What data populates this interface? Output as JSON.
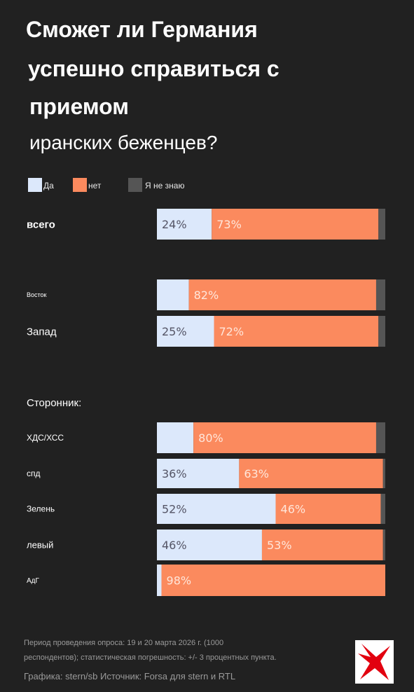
{
  "title_lines": [
    "Сможет ли Германия",
    "успешно справиться с",
    "приемом",
    "иранских беженцев?"
  ],
  "legend": [
    {
      "label": "Да",
      "color": "#dce8fb"
    },
    {
      "label": "нет",
      "color": "#fb8a5e"
    },
    {
      "label": "Я не знаю",
      "color": "#555555"
    }
  ],
  "chart_data": {
    "type": "bar",
    "orientation": "horizontal",
    "stacked": true,
    "title": "Сможет ли Германия успешно справиться с приемом иранских беженцев?",
    "section_labels": [
      "Сторонник:"
    ],
    "categories": [
      "всего",
      "Восток",
      "Запад",
      "ХДС/ХСС",
      "спд",
      "Зелень",
      "левый",
      "АдГ"
    ],
    "series": [
      {
        "name": "Да",
        "color": "#dce8fb",
        "values": [
          24,
          14,
          25,
          16,
          36,
          52,
          46,
          2
        ],
        "labels": [
          "24%",
          "",
          "25%",
          "",
          "36%",
          "52%",
          "46%",
          ""
        ]
      },
      {
        "name": "нет",
        "color": "#fb8a5e",
        "values": [
          73,
          82,
          72,
          80,
          63,
          46,
          53,
          98
        ],
        "labels": [
          "73%",
          "82%",
          "72%",
          "80%",
          "63%",
          "46%",
          "53%",
          "98%"
        ]
      },
      {
        "name": "Я не знаю",
        "color": "#555555",
        "values": [
          3,
          4,
          3,
          4,
          1,
          2,
          1,
          0
        ],
        "labels": [
          "",
          "",
          "",
          "",
          "",
          "",
          "",
          ""
        ]
      }
    ],
    "xlim": [
      0,
      100
    ],
    "legend_position": "top-left"
  },
  "footer": {
    "line1": "Период проведения опроса: 19 и 20 марта 2026 г. (1000",
    "line2": "респондентов); статистическая погрешность: +/- 3 процентных пункта.",
    "credit": "Графика: stern/sb Источник: Forsa для stern и RTL"
  },
  "logo_icon": "stern-star-logo",
  "colors": {
    "background": "#212121",
    "text": "#ffffff",
    "logo_star": "#e2000f"
  }
}
